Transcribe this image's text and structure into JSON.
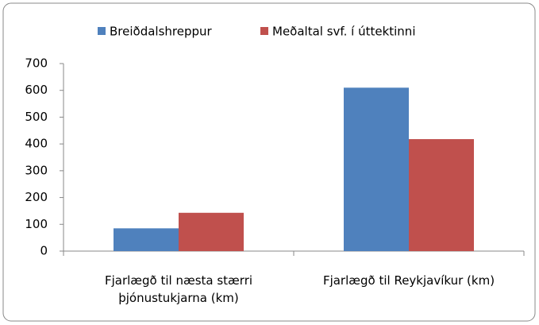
{
  "chart_data": {
    "type": "bar",
    "categories": [
      "Fjarlægð til næsta stærri þjónustukjarna (km)",
      "Fjarlægð til Reykjavíkur (km)"
    ],
    "series": [
      {
        "name": "Breiðdalshreppur",
        "color": "#4f81bd",
        "values": [
          85,
          610
        ]
      },
      {
        "name": "Meðaltal svf. í úttektinni",
        "color": "#c0504d",
        "values": [
          143,
          418
        ]
      }
    ],
    "ylim": [
      0,
      700
    ],
    "yticks": [
      0,
      100,
      200,
      300,
      400,
      500,
      600,
      700
    ],
    "grid": false,
    "legend": "top"
  }
}
